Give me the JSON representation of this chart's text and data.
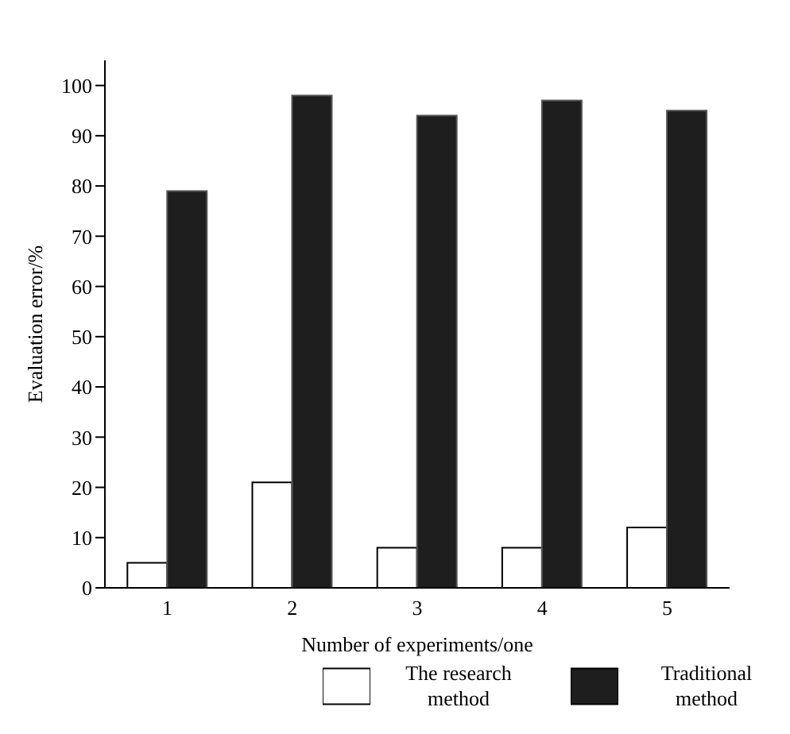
{
  "chart_data": {
    "type": "bar",
    "xlabel": "Number of experiments/one",
    "ylabel": "Evaluation error/%",
    "categories": [
      "1",
      "2",
      "3",
      "4",
      "5"
    ],
    "series": [
      {
        "name": "The research method",
        "color": "#ffffff",
        "values": [
          5,
          21,
          8,
          8,
          12
        ]
      },
      {
        "name": "Traditional method",
        "color": "#1e1e1e",
        "values": [
          79,
          98,
          94,
          97,
          95
        ]
      }
    ],
    "ylim": [
      0,
      105
    ],
    "yticks": [
      0,
      10,
      20,
      30,
      40,
      50,
      60,
      70,
      80,
      90,
      100
    ],
    "grid": false,
    "legend": "bottom"
  }
}
